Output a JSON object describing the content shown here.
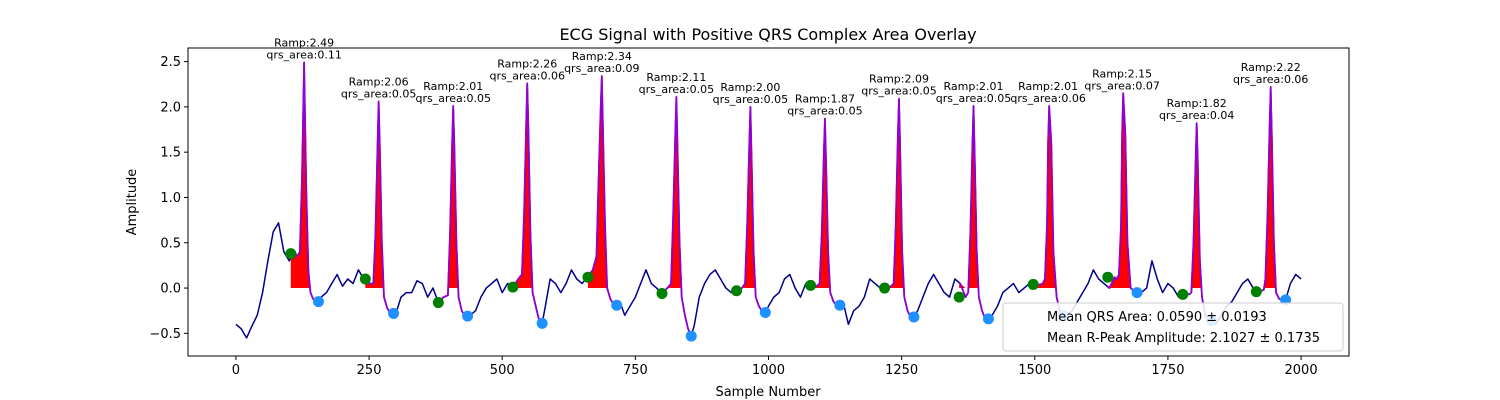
{
  "chart_data": {
    "type": "line",
    "title": "ECG Signal with Positive QRS Complex Area Overlay",
    "xlabel": "Sample Number",
    "ylabel": "Amplitude",
    "xlim": [
      -90,
      2090
    ],
    "ylim": [
      -0.75,
      2.65
    ],
    "xticks": [
      0,
      250,
      500,
      750,
      1000,
      1250,
      1500,
      1750,
      2000
    ],
    "yticks": [
      -0.5,
      0.0,
      0.5,
      1.0,
      1.5,
      2.0,
      2.5
    ],
    "xtick_labels": [
      "0",
      "250",
      "500",
      "750",
      "1000",
      "1250",
      "1500",
      "1750",
      "2000"
    ],
    "ytick_labels": [
      "−0.5",
      "0.0",
      "0.5",
      "1.0",
      "1.5",
      "2.0",
      "2.5"
    ],
    "grid": false,
    "legend_position": "lower-right",
    "legend": [
      "Mean QRS Area: 0.0590 ± 0.0193",
      "Mean R-Peak Amplitude: 2.1027 ± 0.1735"
    ],
    "beats": [
      {
        "r": 128,
        "ramp": 2.49,
        "area": 0.11,
        "q": 103,
        "qy": 0.38,
        "s": 155,
        "sy": -0.15,
        "r_label": "Ramp:2.49",
        "area_label": "qrs_area:0.11"
      },
      {
        "r": 268,
        "ramp": 2.06,
        "area": 0.05,
        "q": 243,
        "qy": 0.1,
        "s": 296,
        "sy": -0.28,
        "r_label": "Ramp:2.06",
        "area_label": "qrs_area:0.05"
      },
      {
        "r": 408,
        "ramp": 2.01,
        "area": 0.05,
        "q": 380,
        "qy": -0.16,
        "s": 435,
        "sy": -0.31,
        "r_label": "Ramp:2.01",
        "area_label": "qrs_area:0.05"
      },
      {
        "r": 547,
        "ramp": 2.26,
        "area": 0.06,
        "q": 520,
        "qy": 0.01,
        "s": 575,
        "sy": -0.39,
        "r_label": "Ramp:2.26",
        "area_label": "qrs_area:0.06"
      },
      {
        "r": 687,
        "ramp": 2.34,
        "area": 0.09,
        "q": 661,
        "qy": 0.12,
        "s": 715,
        "sy": -0.19,
        "r_label": "Ramp:2.34",
        "area_label": "qrs_area:0.09"
      },
      {
        "r": 827,
        "ramp": 2.11,
        "area": 0.05,
        "q": 800,
        "qy": -0.06,
        "s": 855,
        "sy": -0.53,
        "r_label": "Ramp:2.11",
        "area_label": "qrs_area:0.05"
      },
      {
        "r": 966,
        "ramp": 2.0,
        "area": 0.05,
        "q": 940,
        "qy": -0.03,
        "s": 994,
        "sy": -0.27,
        "r_label": "Ramp:2.00",
        "area_label": "qrs_area:0.05"
      },
      {
        "r": 1106,
        "ramp": 1.87,
        "area": 0.05,
        "q": 1079,
        "qy": 0.03,
        "s": 1134,
        "sy": -0.19,
        "r_label": "Ramp:1.87",
        "area_label": "qrs_area:0.05"
      },
      {
        "r": 1245,
        "ramp": 2.09,
        "area": 0.05,
        "q": 1218,
        "qy": 0.0,
        "s": 1273,
        "sy": -0.32,
        "r_label": "Ramp:2.09",
        "area_label": "qrs_area:0.05"
      },
      {
        "r": 1385,
        "ramp": 2.01,
        "area": 0.05,
        "q": 1358,
        "qy": -0.1,
        "s": 1413,
        "sy": -0.34,
        "r_label": "Ramp:2.01",
        "area_label": "qrs_area:0.05"
      },
      {
        "r": 1525,
        "ramp": 2.01,
        "area": 0.06,
        "q": 1497,
        "qy": 0.04,
        "s": 1553,
        "sy": -0.3,
        "r_label": "Ramp:2.01",
        "area_label": "qrs_area:0.06"
      },
      {
        "r": 1664,
        "ramp": 2.15,
        "area": 0.07,
        "q": 1637,
        "qy": 0.12,
        "s": 1692,
        "sy": -0.05,
        "r_label": "Ramp:2.15",
        "area_label": "qrs_area:0.07"
      },
      {
        "r": 1804,
        "ramp": 1.82,
        "area": 0.04,
        "q": 1778,
        "qy": -0.07,
        "s": 1832,
        "sy": -0.36,
        "r_label": "Ramp:1.82",
        "area_label": "qrs_area:0.04"
      },
      {
        "r": 1943,
        "ramp": 2.22,
        "area": 0.06,
        "q": 1916,
        "qy": -0.04,
        "s": 1971,
        "sy": -0.13,
        "r_label": "Ramp:2.22",
        "area_label": "qrs_area:0.06"
      }
    ],
    "series": [
      {
        "x": [
          0,
          10,
          20,
          30,
          40,
          50,
          60,
          70,
          80,
          90,
          100,
          110,
          115,
          120,
          124,
          128,
          132,
          136,
          140,
          145,
          150,
          155,
          160,
          170,
          180,
          190,
          200,
          210,
          220,
          230,
          240,
          250,
          258,
          262,
          266,
          268,
          270,
          274,
          278,
          284,
          290,
          296,
          302,
          310,
          320,
          330,
          340,
          350,
          360,
          370,
          380,
          390,
          398,
          402,
          406,
          408,
          410,
          414,
          418,
          424,
          430,
          435,
          440,
          450,
          460,
          470,
          480,
          490,
          500,
          510,
          520,
          530,
          537,
          541,
          545,
          547,
          549,
          553,
          557,
          563,
          569,
          575,
          581,
          590,
          600,
          610,
          620,
          630,
          640,
          650,
          660,
          670,
          677,
          681,
          685,
          687,
          689,
          693,
          697,
          703,
          709,
          715,
          721,
          730,
          740,
          750,
          760,
          770,
          780,
          790,
          800,
          810,
          817,
          821,
          825,
          827,
          829,
          833,
          837,
          843,
          849,
          855,
          861,
          870,
          880,
          890,
          900,
          910,
          920,
          930,
          940,
          950,
          956,
          960,
          964,
          966,
          968,
          972,
          976,
          982,
          988,
          994,
          1000,
          1010,
          1020,
          1030,
          1040,
          1050,
          1060,
          1070,
          1080,
          1090,
          1096,
          1100,
          1104,
          1106,
          1108,
          1112,
          1116,
          1122,
          1128,
          1134,
          1140,
          1150,
          1160,
          1170,
          1180,
          1190,
          1200,
          1210,
          1220,
          1230,
          1235,
          1239,
          1243,
          1245,
          1247,
          1251,
          1255,
          1261,
          1267,
          1273,
          1280,
          1290,
          1300,
          1310,
          1320,
          1330,
          1340,
          1350,
          1360,
          1370,
          1375,
          1379,
          1383,
          1385,
          1387,
          1391,
          1395,
          1401,
          1407,
          1413,
          1420,
          1430,
          1440,
          1450,
          1460,
          1470,
          1480,
          1490,
          1500,
          1510,
          1515,
          1519,
          1523,
          1525,
          1527,
          1531,
          1535,
          1541,
          1547,
          1553,
          1560,
          1570,
          1580,
          1590,
          1600,
          1610,
          1620,
          1630,
          1640,
          1650,
          1654,
          1658,
          1662,
          1664,
          1666,
          1670,
          1674,
          1680,
          1686,
          1692,
          1700,
          1710,
          1720,
          1730,
          1740,
          1750,
          1760,
          1770,
          1780,
          1790,
          1794,
          1798,
          1802,
          1804,
          1806,
          1810,
          1814,
          1820,
          1826,
          1832,
          1840,
          1850,
          1860,
          1870,
          1880,
          1890,
          1900,
          1910,
          1920,
          1930,
          1933,
          1937,
          1941,
          1943,
          1945,
          1949,
          1953,
          1959,
          1965,
          1971,
          1980,
          1990,
          2000
        ],
        "y": [
          -0.4,
          -0.45,
          -0.55,
          -0.42,
          -0.3,
          -0.05,
          0.3,
          0.62,
          0.72,
          0.4,
          0.3,
          0.4,
          0.35,
          0.4,
          1.2,
          2.49,
          1.1,
          0.2,
          -0.05,
          -0.12,
          -0.15,
          -0.15,
          -0.1,
          -0.05,
          0.05,
          0.15,
          0.02,
          0.1,
          0.05,
          0.2,
          0.1,
          0.05,
          0.05,
          0.6,
          1.6,
          2.06,
          1.6,
          0.5,
          -0.1,
          -0.22,
          -0.28,
          -0.28,
          -0.25,
          -0.1,
          -0.05,
          -0.05,
          0.08,
          0.05,
          -0.1,
          0.0,
          -0.16,
          -0.1,
          -0.08,
          0.6,
          1.6,
          2.01,
          1.6,
          0.5,
          -0.1,
          -0.25,
          -0.31,
          -0.31,
          -0.3,
          -0.25,
          -0.1,
          0.0,
          0.05,
          0.1,
          -0.05,
          0.05,
          0.01,
          0.1,
          0.15,
          0.8,
          1.8,
          2.26,
          1.8,
          0.6,
          -0.05,
          -0.2,
          -0.35,
          -0.39,
          -0.2,
          0.1,
          0.05,
          -0.05,
          0.05,
          0.2,
          0.1,
          0.05,
          0.12,
          0.2,
          0.35,
          1.2,
          2.0,
          2.34,
          1.8,
          0.7,
          0.0,
          -0.12,
          -0.18,
          -0.19,
          -0.15,
          -0.3,
          -0.2,
          -0.1,
          0.05,
          0.2,
          0.05,
          0.0,
          -0.06,
          0.0,
          0.05,
          0.8,
          1.7,
          2.11,
          1.6,
          0.5,
          -0.1,
          -0.3,
          -0.45,
          -0.53,
          -0.4,
          -0.1,
          0.05,
          0.15,
          0.2,
          0.1,
          0.0,
          -0.05,
          -0.03,
          0.0,
          0.05,
          0.7,
          1.6,
          2.0,
          1.5,
          0.4,
          -0.1,
          -0.2,
          -0.26,
          -0.27,
          -0.2,
          -0.1,
          -0.05,
          0.1,
          0.15,
          0.0,
          -0.1,
          0.05,
          0.03,
          0.02,
          0.05,
          0.6,
          1.5,
          1.87,
          1.4,
          0.4,
          -0.05,
          -0.15,
          -0.19,
          -0.19,
          -0.15,
          -0.4,
          -0.25,
          -0.2,
          -0.1,
          0.1,
          0.05,
          0.0,
          0.0,
          0.02,
          0.05,
          0.7,
          1.7,
          2.09,
          1.6,
          0.4,
          -0.1,
          -0.25,
          -0.32,
          -0.32,
          -0.25,
          -0.1,
          0.05,
          0.15,
          0.05,
          -0.05,
          -0.1,
          0.1,
          0.05,
          -0.1,
          -0.05,
          0.6,
          1.6,
          2.01,
          1.5,
          0.4,
          -0.1,
          -0.25,
          -0.34,
          -0.34,
          -0.3,
          -0.2,
          -0.05,
          0.0,
          0.05,
          -0.05,
          0.0,
          0.05,
          0.03,
          0.04,
          0.05,
          0.1,
          0.7,
          1.6,
          2.01,
          1.6,
          0.4,
          -0.1,
          -0.25,
          -0.3,
          -0.3,
          -0.25,
          -0.15,
          -0.05,
          0.05,
          0.2,
          0.1,
          0.05,
          0.0,
          0.12,
          0.1,
          0.15,
          0.7,
          1.7,
          2.15,
          1.7,
          0.5,
          0.0,
          -0.03,
          -0.05,
          -0.05,
          0.0,
          0.3,
          0.1,
          -0.05,
          0.05,
          0.0,
          -0.1,
          -0.05,
          -0.07,
          -0.05,
          0.5,
          1.4,
          1.82,
          1.4,
          0.3,
          -0.1,
          -0.3,
          -0.36,
          -0.36,
          -0.4,
          -0.3,
          -0.2,
          -0.15,
          -0.05,
          0.05,
          0.1,
          0.0,
          -0.04,
          -0.02,
          0.1,
          0.8,
          1.8,
          2.22,
          1.7,
          0.5,
          -0.05,
          -0.12,
          -0.13,
          -0.13,
          0.05,
          0.15,
          0.1
        ]
      }
    ]
  }
}
